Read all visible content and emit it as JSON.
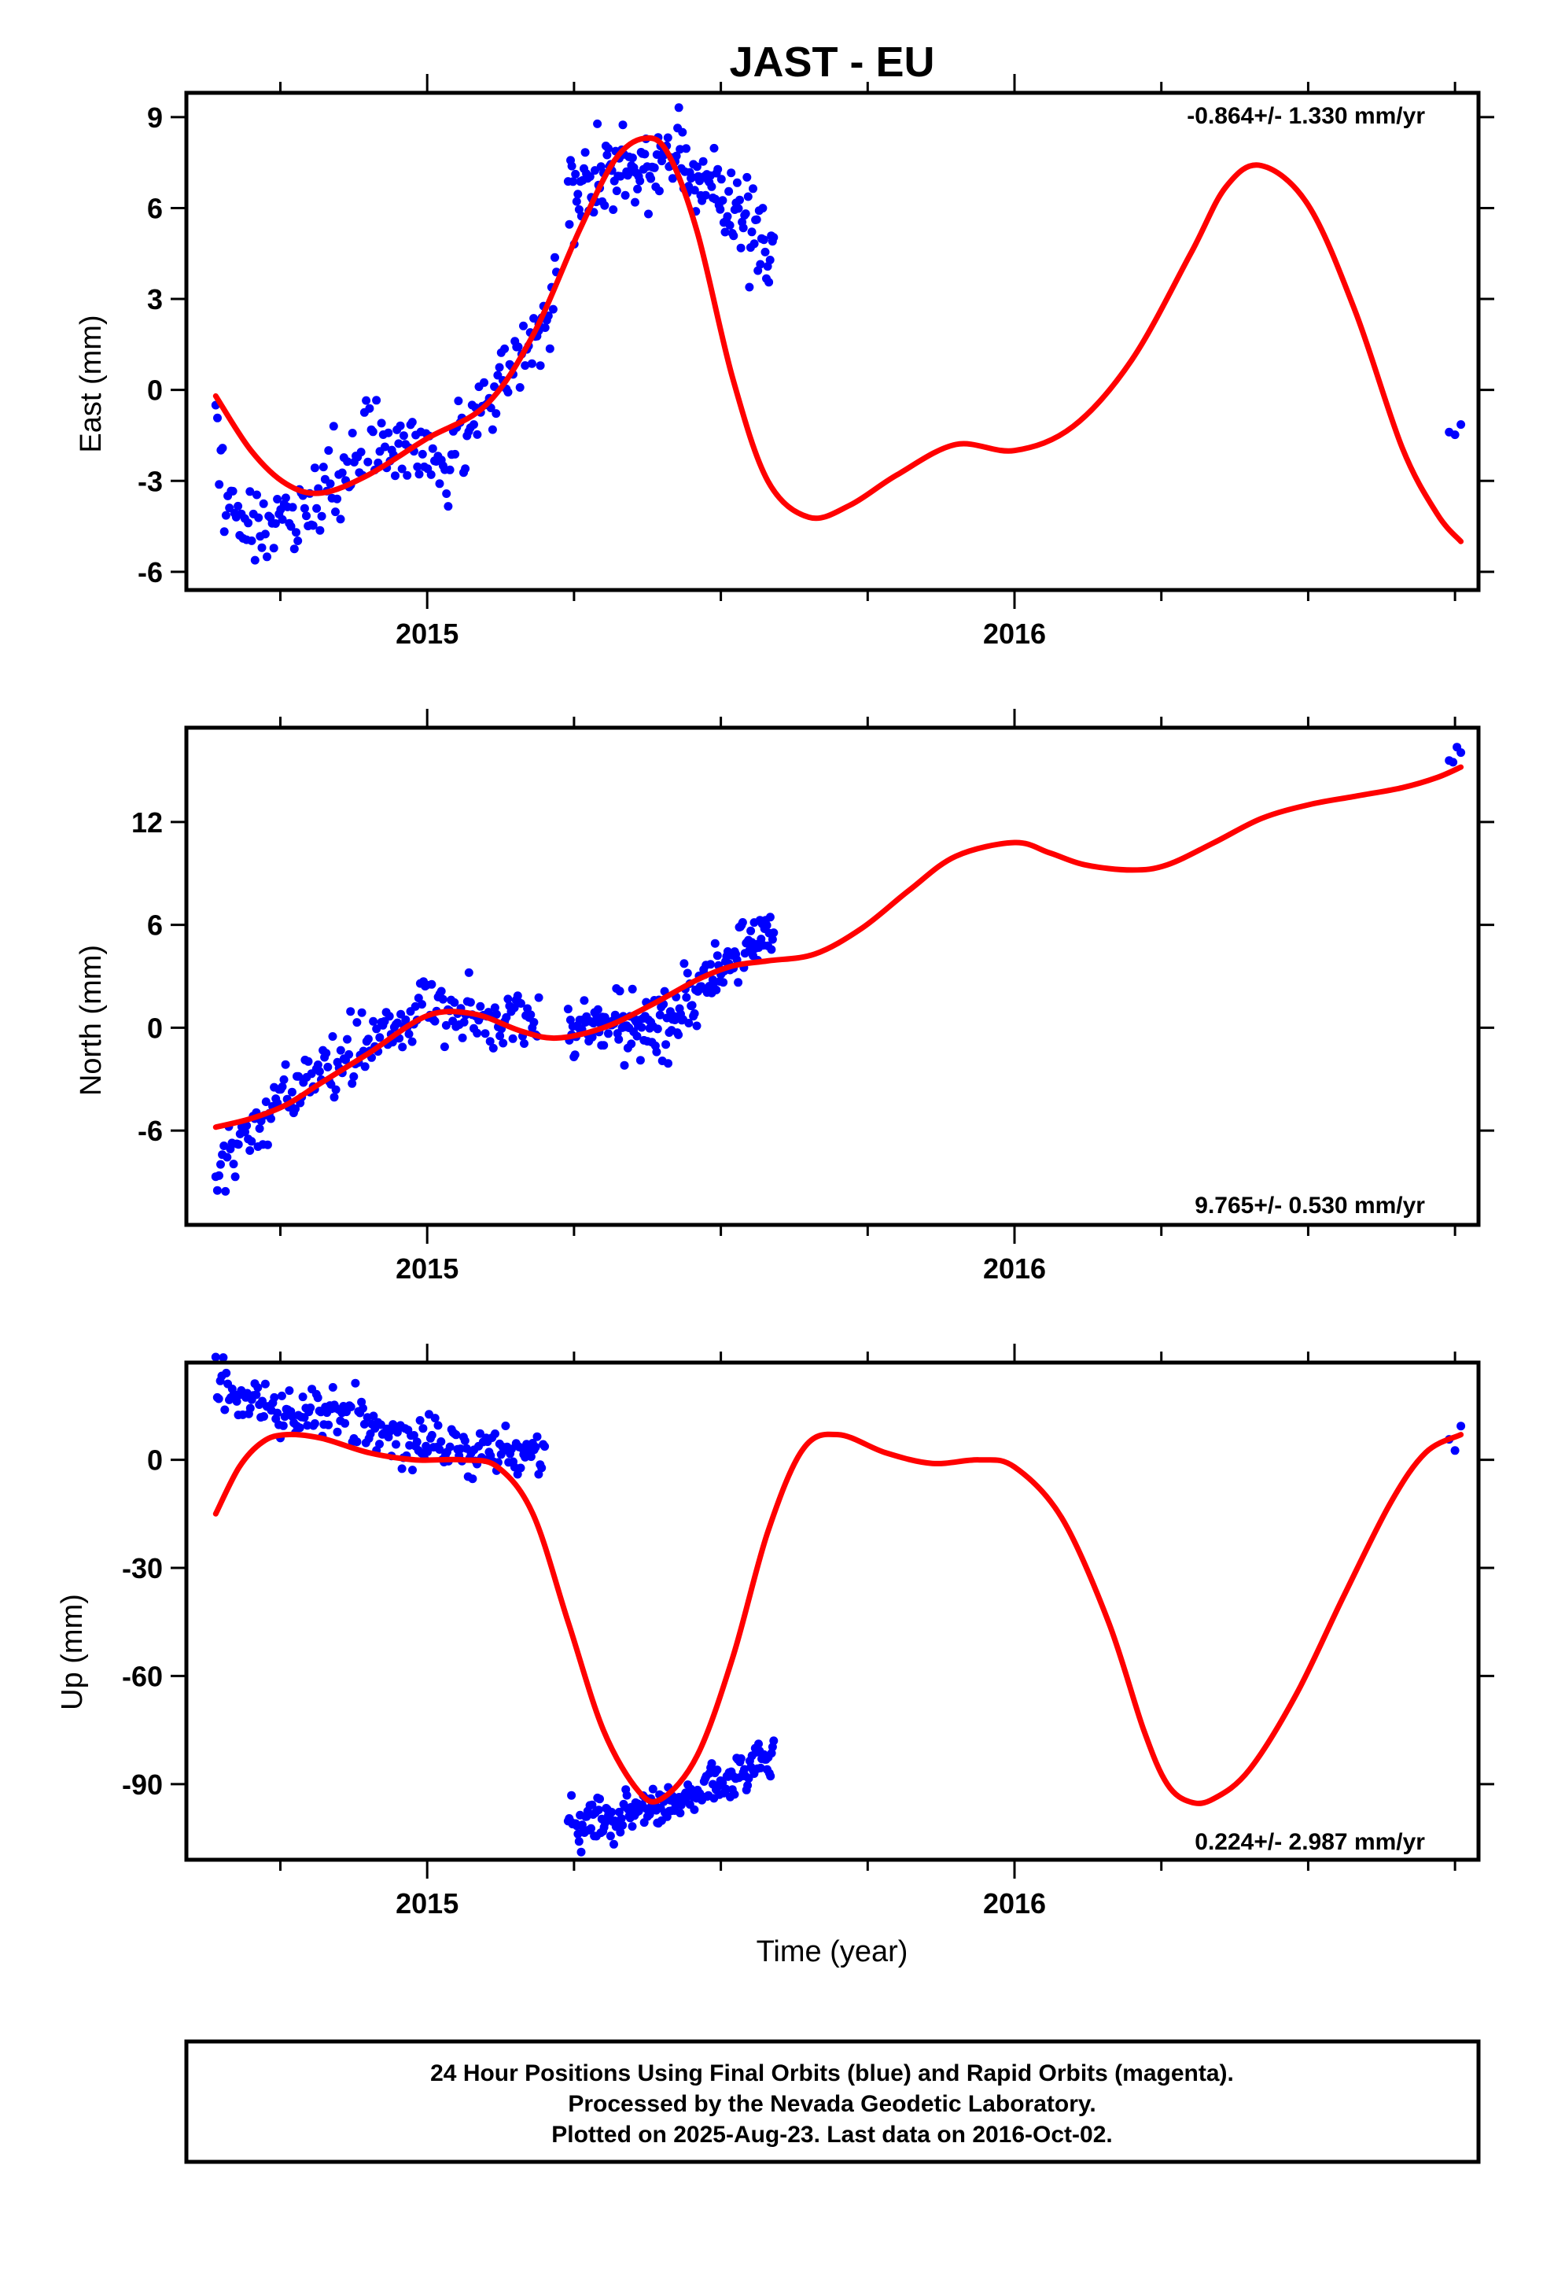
{
  "chart_data": {
    "title": "JAST - EU",
    "xlabel": "Time (year)",
    "colors": {
      "final_orbits": "#0000ff",
      "model_fit": "#ff0000",
      "frame": "#000000"
    },
    "panels": [
      {
        "type": "scatter",
        "name": "east",
        "ylabel": "East (mm)",
        "rate": "-0.864+/- 1.330 mm/yr",
        "rate_position": "top-right",
        "xlim": [
          2014.59,
          2016.79
        ],
        "ylim": [
          -6.6,
          9.8
        ],
        "yticks": [
          -6,
          -3,
          0,
          3,
          6,
          9
        ],
        "xticks": [
          2015,
          2016
        ],
        "fit": {
          "x": [
            2014.64,
            2014.7,
            2014.76,
            2014.82,
            2014.9,
            2015.0,
            2015.1,
            2015.18,
            2015.26,
            2015.32,
            2015.37,
            2015.41,
            2015.46,
            2015.52,
            2015.58,
            2015.65,
            2015.72,
            2015.8,
            2015.9,
            2016.0,
            2016.1,
            2016.2,
            2016.3,
            2016.36,
            2016.42,
            2016.5,
            2016.58,
            2016.66,
            2016.72,
            2016.76
          ],
          "y": [
            -0.2,
            -2.0,
            -3.1,
            -3.4,
            -2.8,
            -1.6,
            -0.5,
            1.8,
            5.3,
            7.6,
            8.3,
            7.8,
            5.2,
            0.4,
            -3.0,
            -4.2,
            -3.8,
            -2.8,
            -1.8,
            -2.0,
            -1.2,
            1.0,
            4.5,
            6.7,
            7.4,
            6.1,
            2.6,
            -1.9,
            -4.1,
            -5.0
          ]
        },
        "segments": [
          {
            "x0": 2014.64,
            "x1": 2015.19,
            "trend": [
              [
                2014.64,
                -1.5
              ],
              [
                2014.66,
                -4.0
              ],
              [
                2014.72,
                -4.3
              ],
              [
                2014.78,
                -3.8
              ],
              [
                2014.84,
                -3.0
              ],
              [
                2014.9,
                -1.8
              ],
              [
                2014.96,
                -1.9
              ],
              [
                2015.0,
                -2.2
              ],
              [
                2015.03,
                -2.6
              ],
              [
                2015.06,
                -1.2
              ],
              [
                2015.1,
                -0.5
              ],
              [
                2015.14,
                0.8
              ],
              [
                2015.19,
                2.0
              ]
            ],
            "spread": 0.8,
            "n": 190
          },
          {
            "x0": 2015.19,
            "x1": 2015.22,
            "trend": [
              [
                2015.19,
                2.0
              ],
              [
                2015.22,
                3.5
              ]
            ],
            "spread": 1.0,
            "n": 12
          },
          {
            "x0": 2015.24,
            "x1": 2015.59,
            "trend": [
              [
                2015.24,
                6.5
              ],
              [
                2015.34,
                7.1
              ],
              [
                2015.42,
                7.5
              ],
              [
                2015.5,
                6.6
              ],
              [
                2015.56,
                5.2
              ],
              [
                2015.59,
                4.2
              ]
            ],
            "spread": 0.9,
            "n": 170
          },
          {
            "x0": 2016.74,
            "x1": 2016.76,
            "trend": [
              [
                2016.74,
                -1.3
              ],
              [
                2016.76,
                -1.2
              ]
            ],
            "spread": 0.2,
            "n": 3
          }
        ]
      },
      {
        "type": "scatter",
        "name": "north",
        "ylabel": "North (mm)",
        "rate": "9.765+/- 0.530 mm/yr",
        "rate_position": "bottom-right",
        "xlim": [
          2014.59,
          2016.79
        ],
        "ylim": [
          -11.5,
          17.5
        ],
        "yticks": [
          -6,
          0,
          6,
          12
        ],
        "xticks": [
          2015,
          2016
        ],
        "fit": {
          "x": [
            2014.64,
            2014.7,
            2014.76,
            2014.82,
            2014.9,
            2015.0,
            2015.08,
            2015.16,
            2015.22,
            2015.3,
            2015.38,
            2015.46,
            2015.52,
            2015.58,
            2015.66,
            2015.74,
            2015.82,
            2015.9,
            2016.0,
            2016.06,
            2016.12,
            2016.2,
            2016.26,
            2016.34,
            2016.42,
            2016.5,
            2016.58,
            2016.66,
            2016.72,
            2016.76
          ],
          "y": [
            -5.8,
            -5.3,
            -4.5,
            -3.2,
            -1.5,
            0.7,
            0.8,
            -0.2,
            -0.6,
            0.0,
            1.3,
            2.8,
            3.6,
            3.9,
            4.3,
            5.8,
            8.0,
            10.0,
            10.8,
            10.2,
            9.5,
            9.2,
            9.5,
            10.8,
            12.2,
            13.0,
            13.5,
            14.0,
            14.6,
            15.2
          ]
        },
        "segments": [
          {
            "x0": 2014.64,
            "x1": 2015.19,
            "trend": [
              [
                2014.64,
                -9.0
              ],
              [
                2014.68,
                -6.5
              ],
              [
                2014.74,
                -4.8
              ],
              [
                2014.8,
                -3.0
              ],
              [
                2014.88,
                -1.5
              ],
              [
                2014.96,
                0.0
              ],
              [
                2015.0,
                1.5
              ],
              [
                2015.04,
                1.0
              ],
              [
                2015.1,
                0.5
              ],
              [
                2015.19,
                0.3
              ]
            ],
            "spread": 1.1,
            "n": 200
          },
          {
            "x0": 2015.24,
            "x1": 2015.59,
            "trend": [
              [
                2015.24,
                -0.2
              ],
              [
                2015.3,
                0.3
              ],
              [
                2015.36,
                -0.2
              ],
              [
                2015.42,
                0.5
              ],
              [
                2015.48,
                2.6
              ],
              [
                2015.54,
                4.6
              ],
              [
                2015.59,
                5.8
              ]
            ],
            "spread": 1.1,
            "n": 180
          },
          {
            "x0": 2016.74,
            "x1": 2016.76,
            "trend": [
              [
                2016.74,
                15.5
              ],
              [
                2016.76,
                16.4
              ]
            ],
            "spread": 0.3,
            "n": 4
          }
        ]
      },
      {
        "type": "scatter",
        "name": "up",
        "ylabel": "Up (mm)",
        "rate": "0.224+/- 2.987 mm/yr",
        "rate_position": "bottom-right",
        "xlim": [
          2014.59,
          2016.79
        ],
        "ylim": [
          -111,
          27
        ],
        "yticks": [
          -90,
          -60,
          -30,
          0
        ],
        "xticks": [
          2015,
          2016
        ],
        "fit": {
          "x": [
            2014.64,
            2014.68,
            2014.72,
            2014.76,
            2014.82,
            2014.9,
            2014.98,
            2015.06,
            2015.12,
            2015.18,
            2015.24,
            2015.3,
            2015.36,
            2015.4,
            2015.46,
            2015.52,
            2015.58,
            2015.64,
            2015.7,
            2015.78,
            2015.86,
            2015.94,
            2016.0,
            2016.08,
            2016.16,
            2016.22,
            2016.26,
            2016.3,
            2016.34,
            2016.4,
            2016.48,
            2016.56,
            2016.64,
            2016.7,
            2016.76
          ],
          "y": [
            -15,
            -2,
            5,
            7,
            6,
            2,
            0,
            0,
            -2,
            -15,
            -45,
            -75,
            -92,
            -94,
            -82,
            -55,
            -20,
            3,
            7,
            2,
            -1,
            0,
            -2,
            -16,
            -45,
            -75,
            -90,
            -95,
            -94,
            -86,
            -65,
            -38,
            -12,
            2,
            7
          ]
        },
        "segments": [
          {
            "x0": 2014.64,
            "x1": 2015.2,
            "trend": [
              [
                2014.64,
                22
              ],
              [
                2014.7,
                16
              ],
              [
                2014.78,
                14
              ],
              [
                2014.86,
                12
              ],
              [
                2014.94,
                7
              ],
              [
                2015.0,
                4
              ],
              [
                2015.06,
                2
              ],
              [
                2015.1,
                3
              ],
              [
                2015.14,
                2
              ],
              [
                2015.2,
                0
              ]
            ],
            "spread": 4.5,
            "n": 220
          },
          {
            "x0": 2015.24,
            "x1": 2015.59,
            "trend": [
              [
                2015.24,
                -102
              ],
              [
                2015.32,
                -100
              ],
              [
                2015.4,
                -96
              ],
              [
                2015.46,
                -92
              ],
              [
                2015.52,
                -88
              ],
              [
                2015.59,
                -82
              ]
            ],
            "spread": 3.5,
            "n": 190
          },
          {
            "x0": 2016.74,
            "x1": 2016.76,
            "trend": [
              [
                2016.74,
                5
              ],
              [
                2016.76,
                10
              ]
            ],
            "spread": 4,
            "n": 3
          }
        ]
      }
    ],
    "footer": [
      "24 Hour Positions Using Final Orbits (blue) and Rapid Orbits (magenta).",
      "Processed by the Nevada Geodetic Laboratory.",
      "Plotted on 2025-Aug-23. Last data on 2016-Oct-02."
    ]
  }
}
